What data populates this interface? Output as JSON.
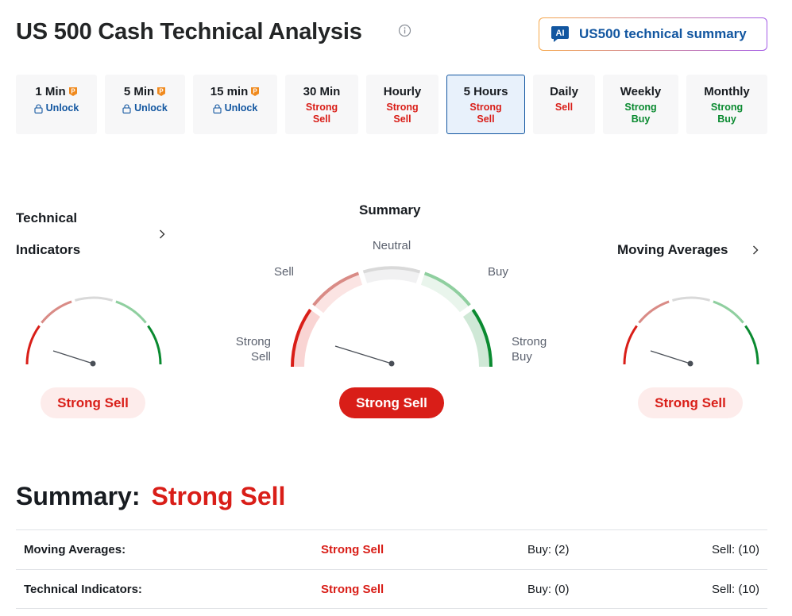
{
  "header": {
    "title": "US 500 Cash Technical Analysis",
    "ai_button_label": "US500 technical summary",
    "ai_badge": "AI"
  },
  "timeframes": [
    {
      "name": "1 Min",
      "status": "Unlock",
      "kind": "unlock",
      "pro": true
    },
    {
      "name": "5 Min",
      "status": "Unlock",
      "kind": "unlock",
      "pro": true
    },
    {
      "name": "15 min",
      "status": "Unlock",
      "kind": "unlock",
      "pro": true
    },
    {
      "name": "30 Min",
      "status_line1": "Strong",
      "status_line2": "Sell",
      "kind": "sell"
    },
    {
      "name": "Hourly",
      "status_line1": "Strong",
      "status_line2": "Sell",
      "kind": "sell"
    },
    {
      "name": "5 Hours",
      "status_line1": "Strong",
      "status_line2": "Sell",
      "kind": "sell",
      "active": true
    },
    {
      "name": "Daily",
      "status_line1": "Sell",
      "status_line2": "",
      "kind": "sell"
    },
    {
      "name": "Weekly",
      "status_line1": "Strong",
      "status_line2": "Buy",
      "kind": "buy"
    },
    {
      "name": "Monthly",
      "status_line1": "Strong",
      "status_line2": "Buy",
      "kind": "buy"
    }
  ],
  "gauges": {
    "technical": {
      "title_line1": "Technical",
      "title_line2": "Indicators",
      "result": "Strong Sell"
    },
    "summary": {
      "title": "Summary",
      "result": "Strong Sell",
      "labels": {
        "strong_sell_1": "Strong",
        "strong_sell_2": "Sell",
        "sell": "Sell",
        "neutral": "Neutral",
        "buy": "Buy",
        "strong_buy_1": "Strong",
        "strong_buy_2": "Buy"
      }
    },
    "moving": {
      "title": "Moving Averages",
      "result": "Strong Sell"
    }
  },
  "summary": {
    "label": "Summary:",
    "value": "Strong Sell",
    "rows": [
      {
        "name": "Moving Averages:",
        "result": "Strong Sell",
        "buy": "Buy: (2)",
        "sell": "Sell: (10)"
      },
      {
        "name": "Technical Indicators:",
        "result": "Strong Sell",
        "buy": "Buy: (0)",
        "sell": "Sell: (10)"
      }
    ]
  },
  "colors": {
    "strong_sell": "#d91e18",
    "sell": "#d98b86",
    "neutral": "#d9d9d9",
    "buy": "#8fcf9f",
    "strong_buy": "#0a8a30",
    "brand_blue": "#1256a0"
  },
  "icons": {
    "info": "info-icon",
    "pro": "pro-badge-icon",
    "lock": "lock-icon",
    "chevron": "chevron-right-icon",
    "ai": "ai-chat-icon"
  }
}
